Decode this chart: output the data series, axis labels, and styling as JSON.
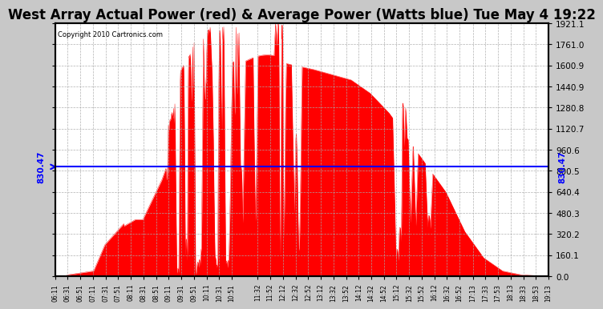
{
  "title": "West Array Actual Power (red) & Average Power (Watts blue) Tue May 4 19:22",
  "copyright_text": "Copyright 2010 Cartronics.com",
  "avg_power": 830.47,
  "ymax": 1921.1,
  "ymin": 0.0,
  "yticks": [
    0.0,
    160.1,
    320.2,
    480.3,
    640.4,
    800.5,
    960.6,
    1120.7,
    1280.8,
    1440.9,
    1600.9,
    1761.0,
    1921.1
  ],
  "ytick_labels": [
    "0.0",
    "160.1",
    "320.2",
    "480.3",
    "640.4",
    "800.5",
    "960.6",
    "1120.7",
    "1280.8",
    "1440.9",
    "1600.9",
    "1761.0",
    "1921.1"
  ],
  "background_color": "#c8c8c8",
  "plot_bg_color": "#ffffff",
  "fill_color": "#ff0000",
  "avg_line_color": "#0000ff",
  "title_fontsize": 12,
  "xtick_labels": [
    "06:11",
    "06:31",
    "06:51",
    "07:11",
    "07:31",
    "07:51",
    "08:11",
    "08:31",
    "08:51",
    "09:11",
    "09:31",
    "09:51",
    "10:11",
    "10:31",
    "10:51",
    "11:32",
    "11:52",
    "12:12",
    "12:32",
    "12:52",
    "13:12",
    "13:32",
    "13:52",
    "14:12",
    "14:32",
    "14:52",
    "15:12",
    "15:32",
    "15:52",
    "16:12",
    "16:32",
    "16:52",
    "17:13",
    "17:33",
    "17:53",
    "18:13",
    "18:33",
    "18:53",
    "19:13"
  ]
}
